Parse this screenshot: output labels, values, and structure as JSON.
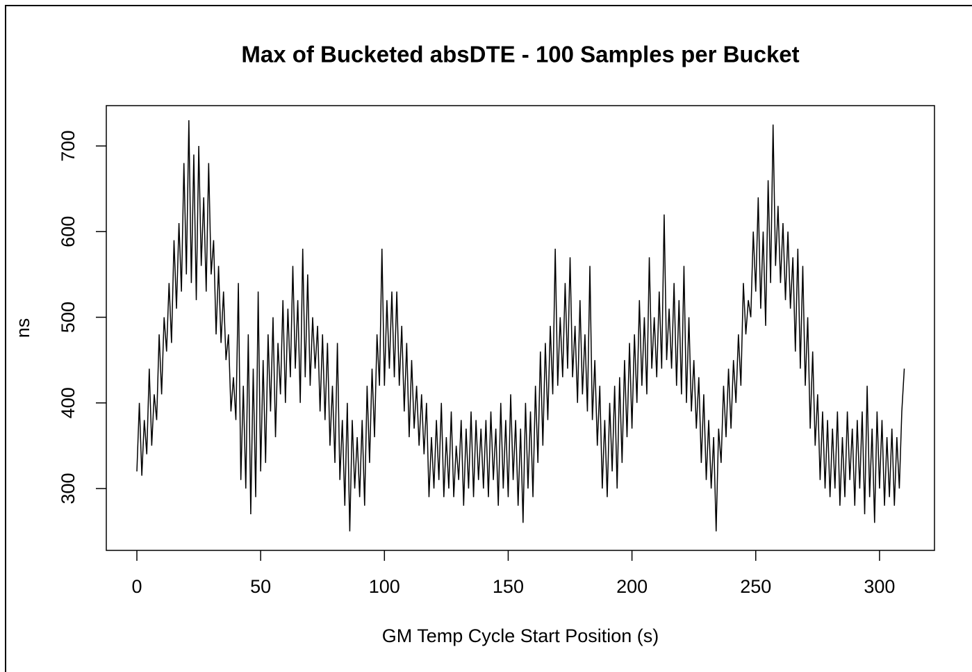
{
  "chart_data": {
    "type": "line",
    "title": "Max of Bucketed absDTE - 100 Samples per Bucket",
    "x_label": "GM Temp Cycle Start Position (s)",
    "y_label": "ns",
    "xlim": [
      -12.35,
      322.2
    ],
    "ylim": [
      227.8,
      747.1
    ],
    "xticks": [
      0,
      50,
      100,
      150,
      200,
      250,
      300
    ],
    "yticks": [
      300,
      400,
      500,
      600,
      700
    ],
    "x": [
      0,
      1,
      2,
      3,
      4,
      5,
      6,
      7,
      8,
      9,
      10,
      11,
      12,
      13,
      14,
      15,
      16,
      17,
      18,
      19,
      20,
      21,
      22,
      23,
      24,
      25,
      26,
      27,
      28,
      29,
      30,
      31,
      32,
      33,
      34,
      35,
      36,
      37,
      38,
      39,
      40,
      41,
      42,
      43,
      44,
      45,
      46,
      47,
      48,
      49,
      50,
      51,
      52,
      53,
      54,
      55,
      56,
      57,
      58,
      59,
      60,
      61,
      62,
      63,
      64,
      65,
      66,
      67,
      68,
      69,
      70,
      71,
      72,
      73,
      74,
      75,
      76,
      77,
      78,
      79,
      80,
      81,
      82,
      83,
      84,
      85,
      86,
      87,
      88,
      89,
      90,
      91,
      92,
      93,
      94,
      95,
      96,
      97,
      98,
      99,
      100,
      101,
      102,
      103,
      104,
      105,
      106,
      107,
      108,
      109,
      110,
      111,
      112,
      113,
      114,
      115,
      116,
      117,
      118,
      119,
      120,
      121,
      122,
      123,
      124,
      125,
      126,
      127,
      128,
      129,
      130,
      131,
      132,
      133,
      134,
      135,
      136,
      137,
      138,
      139,
      140,
      141,
      142,
      143,
      144,
      145,
      146,
      147,
      148,
      149,
      150,
      151,
      152,
      153,
      154,
      155,
      156,
      157,
      158,
      159,
      160,
      161,
      162,
      163,
      164,
      165,
      166,
      167,
      168,
      169,
      170,
      171,
      172,
      173,
      174,
      175,
      176,
      177,
      178,
      179,
      180,
      181,
      182,
      183,
      184,
      185,
      186,
      187,
      188,
      189,
      190,
      191,
      192,
      193,
      194,
      195,
      196,
      197,
      198,
      199,
      200,
      201,
      202,
      203,
      204,
      205,
      206,
      207,
      208,
      209,
      210,
      211,
      212,
      213,
      214,
      215,
      216,
      217,
      218,
      219,
      220,
      221,
      222,
      223,
      224,
      225,
      226,
      227,
      228,
      229,
      230,
      231,
      232,
      233,
      234,
      235,
      236,
      237,
      238,
      239,
      240,
      241,
      242,
      243,
      244,
      245,
      246,
      247,
      248,
      249,
      250,
      251,
      252,
      253,
      254,
      255,
      256,
      257,
      258,
      259,
      260,
      261,
      262,
      263,
      264,
      265,
      266,
      267,
      268,
      269,
      270,
      271,
      272,
      273,
      274,
      275,
      276,
      277,
      278,
      279,
      280,
      281,
      282,
      283,
      284,
      285,
      286,
      287,
      288,
      289,
      290,
      291,
      292,
      293,
      294,
      295,
      296,
      297,
      298,
      299,
      300,
      301,
      302,
      303,
      304,
      305,
      306,
      307,
      308,
      309,
      310
    ],
    "series": [
      {
        "color": "#000000",
        "values": [
          320,
          400,
          315,
          380,
          340,
          440,
          350,
          410,
          380,
          480,
          410,
          500,
          460,
          540,
          470,
          590,
          510,
          610,
          530,
          680,
          550,
          730,
          540,
          690,
          520,
          700,
          560,
          640,
          530,
          680,
          550,
          590,
          480,
          560,
          470,
          530,
          450,
          480,
          390,
          430,
          380,
          540,
          310,
          420,
          300,
          480,
          270,
          440,
          290,
          530,
          320,
          450,
          330,
          480,
          390,
          500,
          360,
          470,
          410,
          520,
          400,
          510,
          430,
          560,
          440,
          520,
          400,
          580,
          430,
          550,
          420,
          500,
          440,
          490,
          390,
          480,
          380,
          470,
          350,
          420,
          330,
          470,
          310,
          380,
          280,
          400,
          250,
          380,
          300,
          360,
          290,
          380,
          280,
          420,
          330,
          440,
          360,
          480,
          420,
          580,
          420,
          520,
          440,
          530,
          430,
          530,
          420,
          490,
          390,
          470,
          360,
          450,
          370,
          420,
          350,
          410,
          340,
          400,
          290,
          360,
          300,
          380,
          310,
          400,
          290,
          360,
          300,
          390,
          290,
          350,
          310,
          380,
          280,
          370,
          300,
          390,
          290,
          380,
          310,
          370,
          300,
          380,
          290,
          390,
          310,
          370,
          280,
          400,
          300,
          380,
          290,
          410,
          310,
          380,
          280,
          370,
          260,
          400,
          300,
          390,
          290,
          420,
          330,
          460,
          350,
          470,
          380,
          490,
          410,
          580,
          420,
          500,
          430,
          540,
          440,
          570,
          430,
          490,
          400,
          520,
          410,
          480,
          390,
          560,
          380,
          450,
          350,
          420,
          300,
          380,
          290,
          400,
          320,
          420,
          300,
          430,
          330,
          450,
          360,
          470,
          370,
          480,
          400,
          520,
          420,
          500,
          410,
          570,
          440,
          500,
          430,
          530,
          440,
          620,
          450,
          510,
          440,
          540,
          420,
          520,
          410,
          560,
          400,
          500,
          390,
          450,
          370,
          430,
          330,
          410,
          310,
          380,
          300,
          360,
          250,
          370,
          330,
          420,
          360,
          440,
          370,
          450,
          400,
          480,
          420,
          540,
          480,
          520,
          500,
          600,
          530,
          640,
          510,
          600,
          490,
          660,
          540,
          725,
          560,
          630,
          540,
          610,
          520,
          600,
          510,
          570,
          460,
          580,
          440,
          560,
          420,
          500,
          370,
          460,
          350,
          410,
          310,
          390,
          300,
          380,
          290,
          370,
          300,
          390,
          280,
          360,
          290,
          390,
          310,
          370,
          280,
          380,
          300,
          390,
          270,
          420,
          290,
          370,
          260,
          390,
          300,
          380,
          280,
          360,
          290,
          370,
          280,
          360,
          300,
          390,
          440
        ]
      }
    ]
  }
}
